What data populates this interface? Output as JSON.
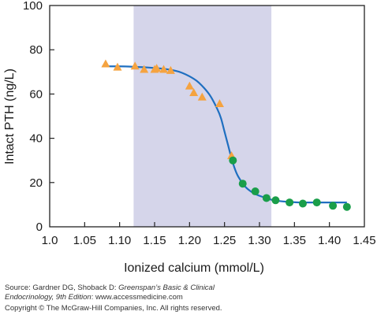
{
  "chart_data": {
    "type": "scatter",
    "xlabel": "Ionized calcium (mmol/L)",
    "ylabel": "Intact PTH (ng/L)",
    "xlim": [
      1.0,
      1.45
    ],
    "ylim": [
      0,
      100
    ],
    "x_ticks": [
      "1.0",
      "1.05",
      "1.10",
      "1.15",
      "1.20",
      "1.25",
      "1.30",
      "1.35",
      "1.40",
      "1.45"
    ],
    "y_ticks": [
      "0",
      "20",
      "40",
      "60",
      "80",
      "100"
    ],
    "grid": false,
    "shaded_region": {
      "x": [
        1.12,
        1.317
      ],
      "color": "#d5d5ea"
    },
    "series": [
      {
        "marker": "triangle",
        "color": "#f5a340",
        "x": [
          1.08,
          1.097,
          1.122,
          1.135,
          1.15,
          1.153,
          1.163,
          1.173,
          1.2,
          1.206,
          1.218,
          1.243,
          1.26
        ],
        "y": [
          73.5,
          72,
          72.5,
          71,
          71,
          71.5,
          71,
          70.5,
          63.5,
          60.5,
          58.5,
          55.5,
          32
        ]
      },
      {
        "marker": "circle",
        "color": "#1a9e4a",
        "x": [
          1.262,
          1.276,
          1.294,
          1.31,
          1.323,
          1.343,
          1.362,
          1.382,
          1.405,
          1.425
        ],
        "y": [
          30,
          19.5,
          16,
          13,
          12,
          11,
          10.5,
          11,
          9.5,
          9
        ]
      },
      {
        "type": "line",
        "color": "#1f6fc0",
        "x": [
          1.075,
          1.1,
          1.12,
          1.14,
          1.16,
          1.18,
          1.19,
          1.2,
          1.21,
          1.22,
          1.23,
          1.24,
          1.245,
          1.25,
          1.255,
          1.26,
          1.265,
          1.27,
          1.28,
          1.29,
          1.3,
          1.31,
          1.32,
          1.34,
          1.36,
          1.38,
          1.4,
          1.425
        ],
        "y": [
          72.5,
          72.5,
          72.3,
          72,
          71.5,
          70.5,
          69.5,
          68,
          66,
          63,
          59,
          53,
          49,
          43,
          37,
          31,
          26,
          22.5,
          18,
          15.5,
          14,
          13,
          12,
          11.3,
          11,
          11,
          11,
          11
        ]
      }
    ]
  },
  "source": {
    "line1_prefix": "Source: Gardner DG, Shoback D: ",
    "line1_italic": "Greenspan’s Basic & Clinical",
    "line2_italic": "Endocrinology, 9th Edition",
    "line2_suffix": ": www.accessmedicine.com",
    "copyright": "Copyright © The McGraw-Hill Companies, Inc. All rights reserved."
  }
}
